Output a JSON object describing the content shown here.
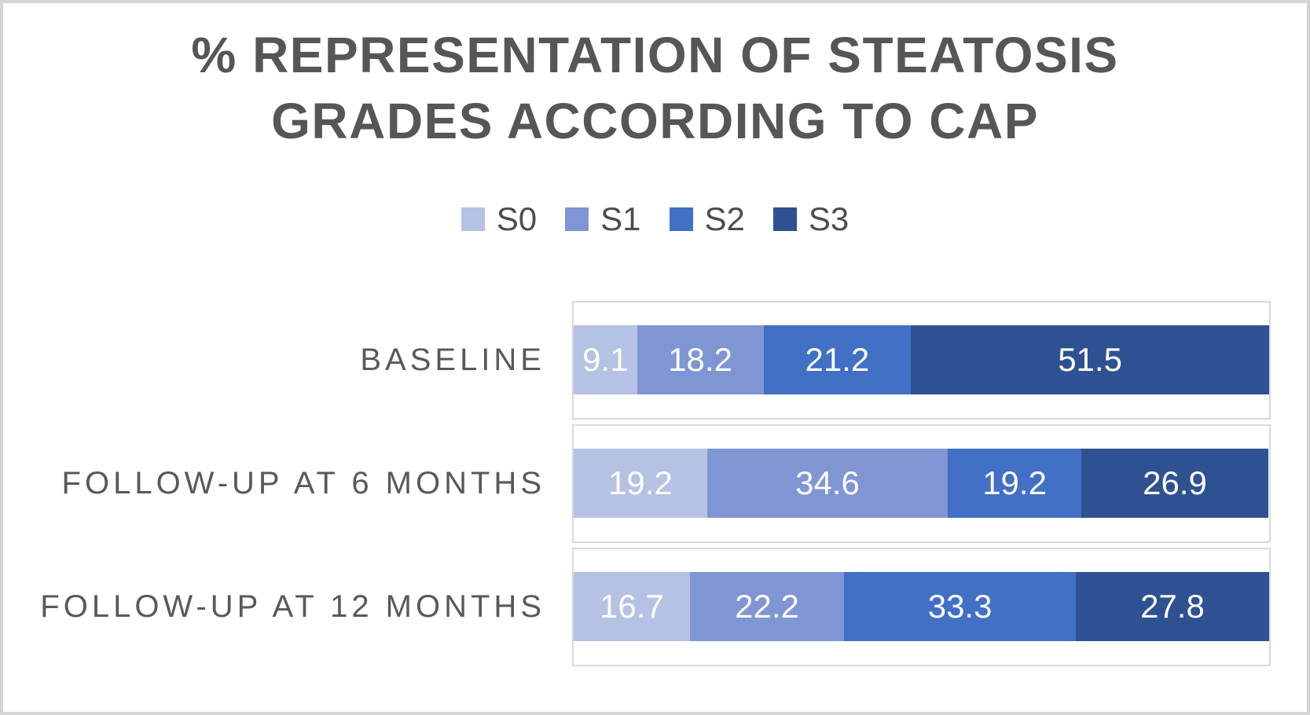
{
  "chart_data": {
    "type": "bar",
    "subtype": "horizontal-stacked-100pct",
    "title": "% REPRESENTATION OF STEATOSIS GRADES ACCORDING TO CAP",
    "title_lines": [
      "% REPRESENTATION OF STEATOSIS",
      "GRADES ACCORDING TO CAP"
    ],
    "categories": [
      "BASELINE",
      "FOLLOW-UP AT 6 MONTHS",
      "FOLLOW-UP AT 12 MONTHS"
    ],
    "series": [
      {
        "name": "S0",
        "color": "#b5c2e4",
        "values": [
          9.1,
          19.2,
          16.7
        ]
      },
      {
        "name": "S1",
        "color": "#8095d3",
        "values": [
          18.2,
          34.6,
          22.2
        ]
      },
      {
        "name": "S2",
        "color": "#4170c4",
        "values": [
          21.2,
          19.2,
          33.3
        ]
      },
      {
        "name": "S3",
        "color": "#2e5191",
        "values": [
          51.5,
          26.9,
          27.8
        ]
      }
    ],
    "xlim": [
      0,
      100
    ],
    "legend_position": "top-center",
    "gridlines": false,
    "value_labels": {
      "position": "center",
      "color": "#ffffff"
    }
  },
  "colors": {
    "title_text": "#565656",
    "category_text": "#595959",
    "legend_text": "#4d4d4d",
    "band_border": "#d9d9d9",
    "frame_border": "#d5d5d5",
    "background": "#ffffff"
  }
}
